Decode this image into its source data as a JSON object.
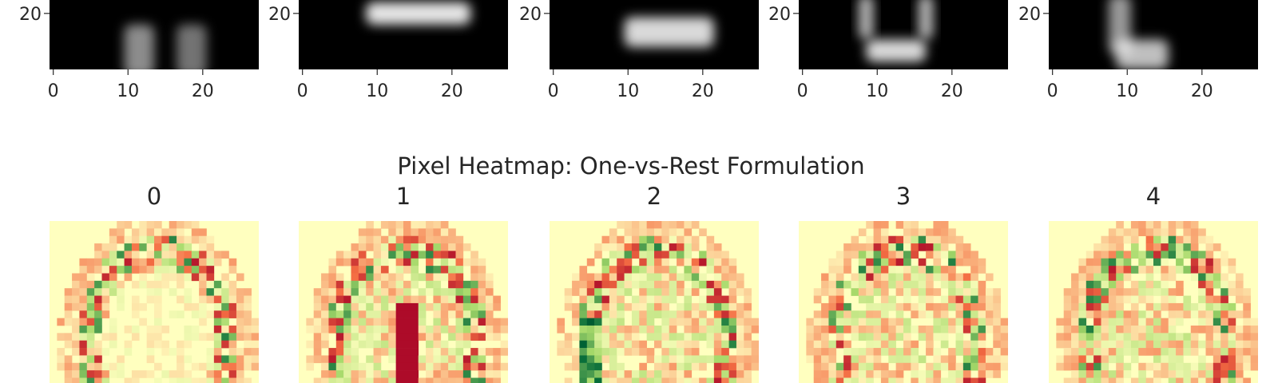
{
  "chart_data": [
    {
      "type": "heatmap",
      "rows": "top",
      "title": "",
      "colormap": "gray",
      "panels": [
        {
          "digit": "",
          "x_ticks": [
            "0",
            "10",
            "20"
          ],
          "y_ticks": [
            "20"
          ]
        },
        {
          "digit": "",
          "x_ticks": [
            "0",
            "10",
            "20"
          ],
          "y_ticks": [
            "20"
          ]
        },
        {
          "digit": "",
          "x_ticks": [
            "0",
            "10",
            "20"
          ],
          "y_ticks": [
            "20"
          ]
        },
        {
          "digit": "",
          "x_ticks": [
            "0",
            "10",
            "20"
          ],
          "y_ticks": [
            "20"
          ]
        },
        {
          "digit": "",
          "x_ticks": [
            "0",
            "10",
            "20"
          ],
          "y_ticks": [
            "20"
          ]
        }
      ],
      "image_size": [
        28,
        28
      ]
    },
    {
      "type": "heatmap",
      "rows": "bottom",
      "title": "Pixel Heatmap: One-vs-Rest Formulation",
      "colormap": "RdYlGn",
      "colors": {
        "low": "#a50026",
        "mid": "#ffffbf",
        "high": "#006837"
      },
      "panels": [
        {
          "label": "0"
        },
        {
          "label": "1"
        },
        {
          "label": "2"
        },
        {
          "label": "3"
        },
        {
          "label": "4"
        }
      ],
      "image_size": [
        28,
        28
      ]
    }
  ]
}
